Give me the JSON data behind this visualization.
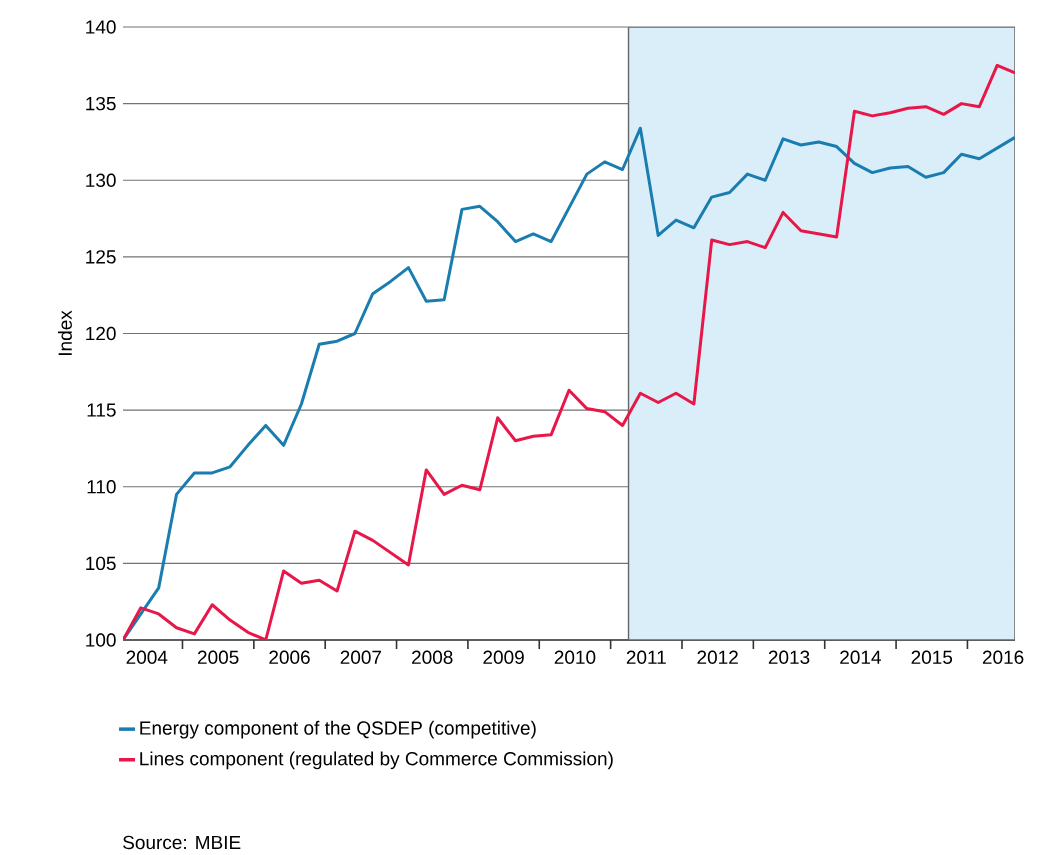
{
  "chart_data": {
    "type": "line",
    "ylabel": "Index",
    "x": [
      "2004-03",
      "2004-06",
      "2004-09",
      "2004-12",
      "2005-03",
      "2005-06",
      "2005-09",
      "2005-12",
      "2006-03",
      "2006-06",
      "2006-09",
      "2006-12",
      "2007-03",
      "2007-06",
      "2007-09",
      "2007-12",
      "2008-03",
      "2008-06",
      "2008-09",
      "2008-12",
      "2009-03",
      "2009-06",
      "2009-09",
      "2009-12",
      "2010-03",
      "2010-06",
      "2010-09",
      "2010-12",
      "2011-03",
      "2011-06",
      "2011-09",
      "2011-12",
      "2012-03",
      "2012-06",
      "2012-09",
      "2012-12",
      "2013-03",
      "2013-06",
      "2013-09",
      "2013-12",
      "2014-03",
      "2014-06",
      "2014-09",
      "2014-12",
      "2015-03",
      "2015-06",
      "2015-09",
      "2015-12",
      "2016-03",
      "2016-06",
      "2016-09"
    ],
    "series": [
      {
        "name": "Energy component of the QSDEP (competitive)",
        "color": "#1a7db0",
        "values": [
          100,
          101.7,
          103.4,
          109.5,
          110.9,
          110.9,
          111.3,
          112.7,
          114.0,
          112.7,
          115.4,
          119.3,
          119.5,
          120.0,
          122.6,
          123.4,
          124.3,
          122.1,
          122.2,
          128.1,
          128.3,
          127.3,
          126.0,
          126.5,
          126.0,
          128.2,
          130.4,
          131.2,
          130.7,
          133.4,
          126.4,
          127.4,
          126.9,
          128.9,
          129.2,
          130.4,
          130.0,
          132.7,
          132.3,
          132.5,
          132.2,
          131.1,
          130.5,
          130.8,
          130.9,
          130.2,
          130.5,
          131.7,
          131.4,
          132.1,
          132.8
        ]
      },
      {
        "name": "Lines component (regulated by Commerce Commission)",
        "color": "#e8174a",
        "values": [
          100,
          102.1,
          101.7,
          100.8,
          100.4,
          102.3,
          101.3,
          100.5,
          100.0,
          104.5,
          103.7,
          103.9,
          103.2,
          107.1,
          106.5,
          105.7,
          104.9,
          111.1,
          109.5,
          110.1,
          109.8,
          114.5,
          113.0,
          113.3,
          113.4,
          116.3,
          115.1,
          114.9,
          114.0,
          116.1,
          115.5,
          116.1,
          115.4,
          126.1,
          125.8,
          126.0,
          125.6,
          127.9,
          126.7,
          126.5,
          126.3,
          134.5,
          134.2,
          134.4,
          134.7,
          134.8,
          134.3,
          135.0,
          134.8,
          137.5,
          137.0
        ]
      }
    ],
    "xlim": [
      "2004-03",
      "2016-09"
    ],
    "xticks": [
      {
        "value": "2004-07",
        "label": "2004"
      },
      {
        "value": "2005-07",
        "label": "2005"
      },
      {
        "value": "2006-07",
        "label": "2006"
      },
      {
        "value": "2007-07",
        "label": "2007"
      },
      {
        "value": "2008-07",
        "label": "2008"
      },
      {
        "value": "2009-07",
        "label": "2009"
      },
      {
        "value": "2010-07",
        "label": "2010"
      },
      {
        "value": "2011-07",
        "label": "2011"
      },
      {
        "value": "2012-07",
        "label": "2012"
      },
      {
        "value": "2013-07",
        "label": "2013"
      },
      {
        "value": "2014-07",
        "label": "2014"
      },
      {
        "value": "2015-07",
        "label": "2015"
      },
      {
        "value": "2016-07",
        "label": "2016"
      },
      {
        "value": "2005",
        "label": null
      },
      {
        "value": "2006",
        "label": null
      },
      {
        "value": "2007",
        "label": null
      },
      {
        "value": "2008",
        "label": null
      },
      {
        "value": "2009",
        "label": null
      },
      {
        "value": "2010",
        "label": null
      },
      {
        "value": "2011",
        "label": null
      },
      {
        "value": "2012",
        "label": null
      },
      {
        "value": "2013",
        "label": null
      },
      {
        "value": "2014",
        "label": null
      },
      {
        "value": "2015",
        "label": null
      },
      {
        "value": "2016",
        "label": null
      }
    ],
    "ylim": [
      100,
      140
    ],
    "yticks": [
      100,
      105,
      110,
      115,
      120,
      125,
      130,
      135,
      140
    ],
    "grid": "y",
    "bands": [
      {
        "axis": "x",
        "from": "2011-04",
        "to": "2016-09",
        "color": "#d9eef9"
      }
    ],
    "legend": "bottom",
    "annotations": [
      "Source: MBIE"
    ]
  }
}
